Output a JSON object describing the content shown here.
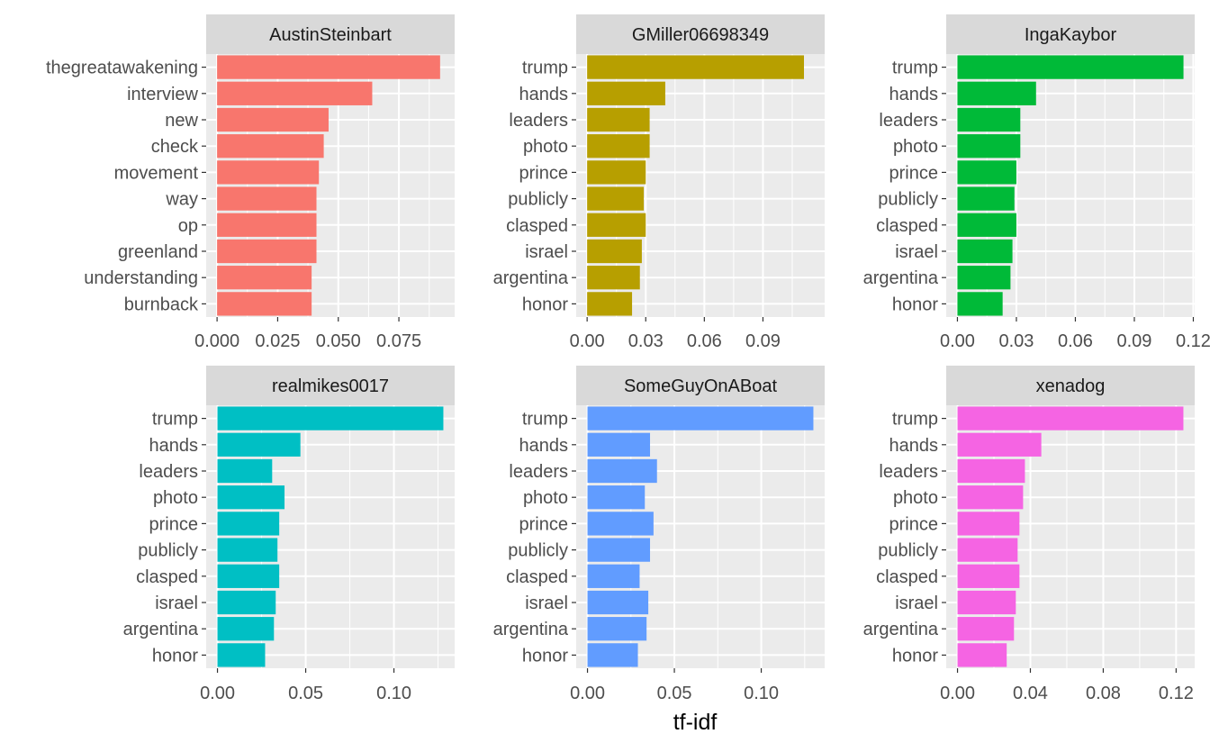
{
  "chart_data": {
    "type": "bar",
    "orientation": "horizontal",
    "layout": "facet-wrap 2 rows x 3 cols, free scales",
    "xlabel": "tf-idf",
    "ylabel": "",
    "grid": true,
    "legend": "none",
    "panels": [
      {
        "title": "AustinSteinbart",
        "color": "#F8766D",
        "categories": [
          "thegreatawakening",
          "interview",
          "new",
          "check",
          "movement",
          "way",
          "op",
          "greenland",
          "understanding",
          "burnback"
        ],
        "values": [
          0.092,
          0.064,
          0.046,
          0.044,
          0.042,
          0.041,
          0.041,
          0.041,
          0.039,
          0.039
        ],
        "xlim": [
          -0.0045,
          0.098
        ],
        "ticks": [
          0.0,
          0.025,
          0.05,
          0.075
        ],
        "tick_labels": [
          "0.000",
          "0.025",
          "0.050",
          "0.075"
        ]
      },
      {
        "title": "GMiller06698349",
        "color": "#B79F00",
        "categories": [
          "trump",
          "hands",
          "leaders",
          "photo",
          "prince",
          "publicly",
          "clasped",
          "israel",
          "argentina",
          "honor"
        ],
        "values": [
          0.111,
          0.04,
          0.032,
          0.032,
          0.03,
          0.029,
          0.03,
          0.028,
          0.027,
          0.023
        ],
        "xlim": [
          -0.0056,
          0.1216
        ],
        "ticks": [
          0.0,
          0.03,
          0.06,
          0.09
        ],
        "tick_labels": [
          "0.00",
          "0.03",
          "0.06",
          "0.09"
        ]
      },
      {
        "title": "IngaKaybor",
        "color": "#00BA38",
        "categories": [
          "trump",
          "hands",
          "leaders",
          "photo",
          "prince",
          "publicly",
          "clasped",
          "israel",
          "argentina",
          "honor"
        ],
        "values": [
          0.115,
          0.04,
          0.032,
          0.032,
          0.03,
          0.029,
          0.03,
          0.028,
          0.027,
          0.023
        ],
        "xlim": [
          -0.0057,
          0.1207
        ],
        "ticks": [
          0.0,
          0.03,
          0.06,
          0.09,
          0.12
        ],
        "tick_labels": [
          "0.00",
          "0.03",
          "0.06",
          "0.09",
          "0.12"
        ]
      },
      {
        "title": "realmikes0017",
        "color": "#00BFC4",
        "categories": [
          "trump",
          "hands",
          "leaders",
          "photo",
          "prince",
          "publicly",
          "clasped",
          "israel",
          "argentina",
          "honor"
        ],
        "values": [
          0.128,
          0.047,
          0.031,
          0.038,
          0.035,
          0.034,
          0.035,
          0.033,
          0.032,
          0.027
        ],
        "xlim": [
          -0.0064,
          0.1344
        ],
        "ticks": [
          0.0,
          0.05,
          0.1
        ],
        "tick_labels": [
          "0.00",
          "0.05",
          "0.10"
        ]
      },
      {
        "title": "SomeGuyOnABoat",
        "color": "#619CFF",
        "categories": [
          "trump",
          "hands",
          "leaders",
          "photo",
          "prince",
          "publicly",
          "clasped",
          "israel",
          "argentina",
          "honor"
        ],
        "values": [
          0.13,
          0.036,
          0.04,
          0.033,
          0.038,
          0.036,
          0.03,
          0.035,
          0.034,
          0.029
        ],
        "xlim": [
          -0.0065,
          0.1365
        ],
        "ticks": [
          0.0,
          0.05,
          0.1
        ],
        "tick_labels": [
          "0.00",
          "0.05",
          "0.10"
        ]
      },
      {
        "title": "xenadog",
        "color": "#F564E3",
        "categories": [
          "trump",
          "hands",
          "leaders",
          "photo",
          "prince",
          "publicly",
          "clasped",
          "israel",
          "argentina",
          "honor"
        ],
        "values": [
          0.124,
          0.046,
          0.037,
          0.036,
          0.034,
          0.033,
          0.034,
          0.032,
          0.031,
          0.027
        ],
        "xlim": [
          -0.0062,
          0.1302
        ],
        "ticks": [
          0.0,
          0.04,
          0.08,
          0.12
        ],
        "tick_labels": [
          "0.00",
          "0.04",
          "0.08",
          "0.12"
        ]
      }
    ]
  }
}
